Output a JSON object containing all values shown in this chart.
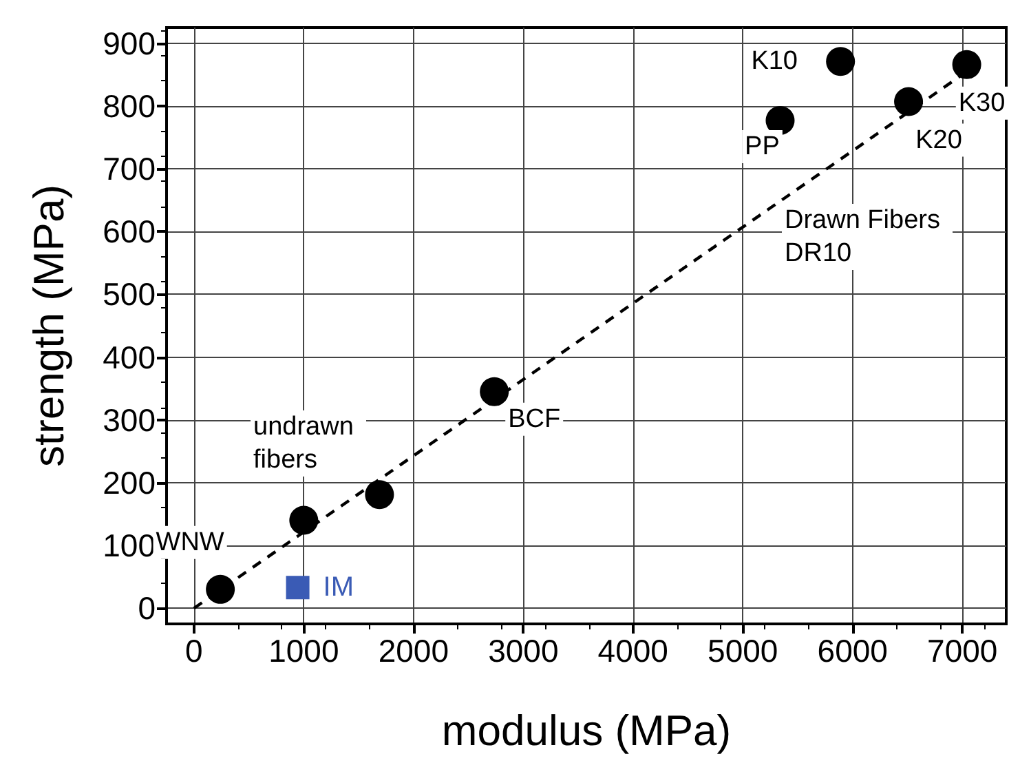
{
  "chart_data": {
    "type": "scatter",
    "xlabel": "modulus (MPa)",
    "ylabel": "strength (MPa)",
    "xlim": [
      -250,
      7400
    ],
    "ylim": [
      -25,
      925
    ],
    "xticks": [
      0,
      1000,
      2000,
      3000,
      4000,
      5000,
      6000,
      7000
    ],
    "yticks": [
      0,
      100,
      200,
      300,
      400,
      500,
      600,
      700,
      800,
      900
    ],
    "grid": true,
    "legend": false,
    "marker": "circle",
    "series": [
      {
        "color": "#000000",
        "x": [
          240,
          1000,
          1690,
          2736,
          5340,
          5890,
          6510,
          7040
        ],
        "values": [
          30,
          140,
          181,
          345,
          777,
          871,
          807,
          866
        ]
      },
      {
        "name": "IM",
        "color": "#3a5bb5",
        "marker": "square",
        "x": [
          945
        ],
        "values": [
          33
        ]
      },
      {
        "type": "line",
        "color": "#000000",
        "line_style": "dashed",
        "marker": "none",
        "x": [
          0,
          7000
        ],
        "values": [
          0,
          850
        ]
      }
    ],
    "annotations": [
      {
        "text": "WNW",
        "x": 240,
        "y": 30
      },
      "undrawn fibers",
      {
        "text": "BCF",
        "x": 2736,
        "y": 345
      },
      {
        "text": "PP",
        "x": 5340,
        "y": 777
      },
      {
        "text": "K10",
        "x": 5890,
        "y": 871
      },
      {
        "text": "K20",
        "x": 6510,
        "y": 807
      },
      {
        "text": "K30",
        "x": 7040,
        "y": 866
      },
      "Drawn Fibers DR10"
    ]
  }
}
